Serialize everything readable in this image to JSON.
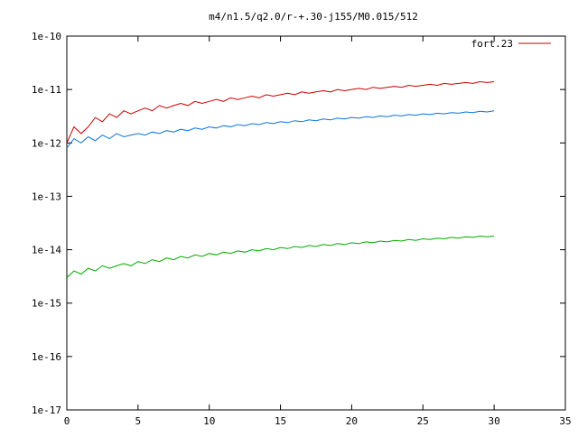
{
  "chart_data": {
    "type": "line",
    "title": "m4/n1.5/q2.0/r-+.30-j155/M0.015/512",
    "xlabel": "",
    "ylabel": "",
    "xlim": [
      0,
      35
    ],
    "ylim": [
      1e-17,
      1e-10
    ],
    "y_scale": "log",
    "x_ticks": [
      0,
      5,
      10,
      15,
      20,
      25,
      30,
      35
    ],
    "x_tick_labels": [
      "0",
      "5",
      "10",
      "15",
      "20",
      "25",
      "30",
      "35"
    ],
    "y_ticks": [
      1e-17,
      1e-16,
      1e-15,
      1e-14,
      1e-13,
      1e-12,
      1e-11,
      1e-10
    ],
    "y_tick_labels": [
      "1e-17",
      "1e-16",
      "1e-15",
      "1e-14",
      "1e-13",
      "1e-12",
      "1e-11",
      "1e-10"
    ],
    "grid": false,
    "legend_position": "top-right",
    "series": [
      {
        "name": "fort.23",
        "color": "#cc0000",
        "x": [
          0,
          0.5,
          1,
          1.5,
          2,
          2.5,
          3,
          3.5,
          4,
          4.5,
          5,
          5.5,
          6,
          6.5,
          7,
          7.5,
          8,
          8.5,
          9,
          9.5,
          10,
          10.5,
          11,
          11.5,
          12,
          12.5,
          13,
          13.5,
          14,
          14.5,
          15,
          15.5,
          16,
          16.5,
          17,
          17.5,
          18,
          18.5,
          19,
          19.5,
          20,
          20.5,
          21,
          21.5,
          22,
          22.5,
          23,
          23.5,
          24,
          24.5,
          25,
          25.5,
          26,
          26.5,
          27,
          27.5,
          28,
          28.5,
          29,
          29.5,
          30
        ],
        "y": [
          1e-12,
          2e-12,
          1.5e-12,
          2e-12,
          3e-12,
          2.5e-12,
          3.5e-12,
          3e-12,
          4e-12,
          3.5e-12,
          4e-12,
          4.5e-12,
          4e-12,
          5e-12,
          4.5e-12,
          5e-12,
          5.5e-12,
          5e-12,
          6e-12,
          5.5e-12,
          6e-12,
          6.5e-12,
          6e-12,
          7e-12,
          6.5e-12,
          7e-12,
          7.5e-12,
          7e-12,
          8e-12,
          7.5e-12,
          8e-12,
          8.5e-12,
          8e-12,
          9e-12,
          8.5e-12,
          9e-12,
          9.5e-12,
          9e-12,
          1e-11,
          9.5e-12,
          1e-11,
          1.05e-11,
          1e-11,
          1.1e-11,
          1.05e-11,
          1.1e-11,
          1.15e-11,
          1.1e-11,
          1.2e-11,
          1.15e-11,
          1.2e-11,
          1.25e-11,
          1.2e-11,
          1.3e-11,
          1.25e-11,
          1.3e-11,
          1.35e-11,
          1.3e-11,
          1.4e-11,
          1.35e-11,
          1.4e-11
        ]
      },
      {
        "name": "",
        "color": "#0a73e0",
        "x": [
          0,
          0.5,
          1,
          1.5,
          2,
          2.5,
          3,
          3.5,
          4,
          4.5,
          5,
          5.5,
          6,
          6.5,
          7,
          7.5,
          8,
          8.5,
          9,
          9.5,
          10,
          10.5,
          11,
          11.5,
          12,
          12.5,
          13,
          13.5,
          14,
          14.5,
          15,
          15.5,
          16,
          16.5,
          17,
          17.5,
          18,
          18.5,
          19,
          19.5,
          20,
          20.5,
          21,
          21.5,
          22,
          22.5,
          23,
          23.5,
          24,
          24.5,
          25,
          25.5,
          26,
          26.5,
          27,
          27.5,
          28,
          28.5,
          29,
          29.5,
          30
        ],
        "y": [
          8e-13,
          1.2e-12,
          1e-12,
          1.3e-12,
          1.1e-12,
          1.4e-12,
          1.2e-12,
          1.5e-12,
          1.3e-12,
          1.4e-12,
          1.5e-12,
          1.4e-12,
          1.6e-12,
          1.5e-12,
          1.7e-12,
          1.6e-12,
          1.8e-12,
          1.7e-12,
          1.9e-12,
          1.8e-12,
          2e-12,
          1.9e-12,
          2.1e-12,
          2e-12,
          2.2e-12,
          2.1e-12,
          2.3e-12,
          2.2e-12,
          2.4e-12,
          2.3e-12,
          2.5e-12,
          2.4e-12,
          2.6e-12,
          2.5e-12,
          2.7e-12,
          2.6e-12,
          2.8e-12,
          2.7e-12,
          2.9e-12,
          2.8e-12,
          3e-12,
          2.9e-12,
          3.1e-12,
          3e-12,
          3.2e-12,
          3.1e-12,
          3.3e-12,
          3.2e-12,
          3.4e-12,
          3.3e-12,
          3.5e-12,
          3.4e-12,
          3.6e-12,
          3.5e-12,
          3.7e-12,
          3.6e-12,
          3.8e-12,
          3.7e-12,
          3.9e-12,
          3.8e-12,
          4e-12
        ]
      },
      {
        "name": "",
        "color": "#00aa00",
        "x": [
          0,
          0.5,
          1,
          1.5,
          2,
          2.5,
          3,
          3.5,
          4,
          4.5,
          5,
          5.5,
          6,
          6.5,
          7,
          7.5,
          8,
          8.5,
          9,
          9.5,
          10,
          10.5,
          11,
          11.5,
          12,
          12.5,
          13,
          13.5,
          14,
          14.5,
          15,
          15.5,
          16,
          16.5,
          17,
          17.5,
          18,
          18.5,
          19,
          19.5,
          20,
          20.5,
          21,
          21.5,
          22,
          22.5,
          23,
          23.5,
          24,
          24.5,
          25,
          25.5,
          26,
          26.5,
          27,
          27.5,
          28,
          28.5,
          29,
          29.5,
          30
        ],
        "y": [
          3e-15,
          4e-15,
          3.5e-15,
          4.5e-15,
          4e-15,
          5e-15,
          4.5e-15,
          5e-15,
          5.5e-15,
          5e-15,
          6e-15,
          5.5e-15,
          6.5e-15,
          6e-15,
          7e-15,
          6.5e-15,
          7.5e-15,
          7e-15,
          8e-15,
          7.5e-15,
          8.5e-15,
          8e-15,
          9e-15,
          8.5e-15,
          9.5e-15,
          9e-15,
          1e-14,
          9.5e-15,
          1.05e-14,
          1e-14,
          1.1e-14,
          1.05e-14,
          1.15e-14,
          1.1e-14,
          1.2e-14,
          1.15e-14,
          1.25e-14,
          1.2e-14,
          1.3e-14,
          1.25e-14,
          1.35e-14,
          1.3e-14,
          1.4e-14,
          1.35e-14,
          1.45e-14,
          1.4e-14,
          1.5e-14,
          1.45e-14,
          1.55e-14,
          1.5e-14,
          1.6e-14,
          1.55e-14,
          1.65e-14,
          1.6e-14,
          1.7e-14,
          1.65e-14,
          1.75e-14,
          1.7e-14,
          1.8e-14,
          1.75e-14,
          1.8e-14
        ]
      }
    ]
  }
}
